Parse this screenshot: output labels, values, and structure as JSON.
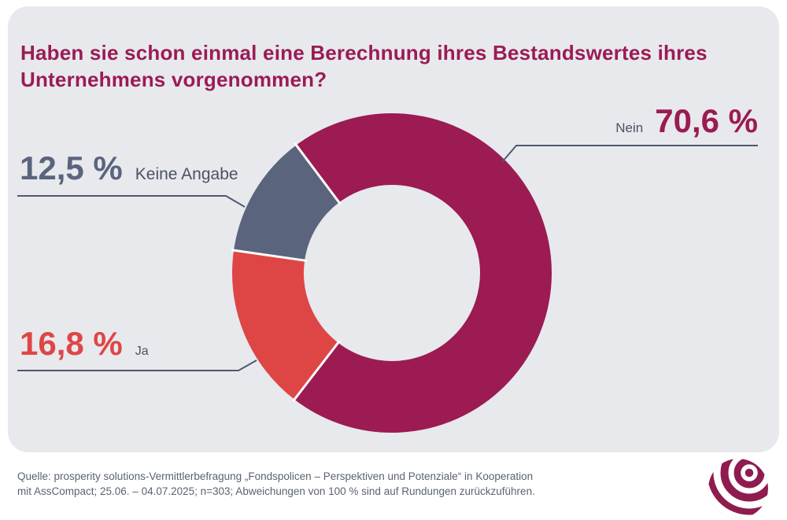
{
  "title": {
    "line1": "Haben sie schon einmal eine Berechnung ihres Bestandswertes ihres",
    "line2": "Unternehmens vorgenommen?"
  },
  "chart_data": {
    "type": "pie",
    "variant": "donut",
    "title": "Haben sie schon einmal eine Berechnung ihres Bestandswertes ihres Unternehmens vorgenommen?",
    "unit": "%",
    "labels_style": "callouts with leader lines",
    "start_angle_deg_clockwise_from_top": -36.8,
    "slices": [
      {
        "label": "Nein",
        "value": 70.6,
        "value_label": "70,6 %",
        "color": "#9B1B52"
      },
      {
        "label": "Ja",
        "value": 16.8,
        "value_label": "16,8 %",
        "color": "#DE4646"
      },
      {
        "label": "Keine Angabe",
        "value": 12.5,
        "value_label": "12,5 %",
        "color": "#5A647D"
      }
    ]
  },
  "footer": {
    "line1": "Quelle: prosperity solutions-Vermittlerbefragung „Fondspolicen – Perspektiven und Potenziale“ in Kooperation",
    "line2": "mit AssCompact; 25.06. – 04.07.2025; n=303; Abweichungen von 100 % sind auf Rundungen zurückzuführen."
  },
  "logo": {
    "icon": "prosperity-solutions-globe"
  },
  "colors": {
    "card_background": "#E8E9ED",
    "title": "#9B1B55",
    "slice_nein": "#9B1B52",
    "slice_ja": "#DE4646",
    "slice_keine_angabe": "#5A647D",
    "leader_line": "#4E5870",
    "category_text": "#4A5263",
    "source_text": "#5A6370",
    "logo": "#8E1C4F"
  }
}
